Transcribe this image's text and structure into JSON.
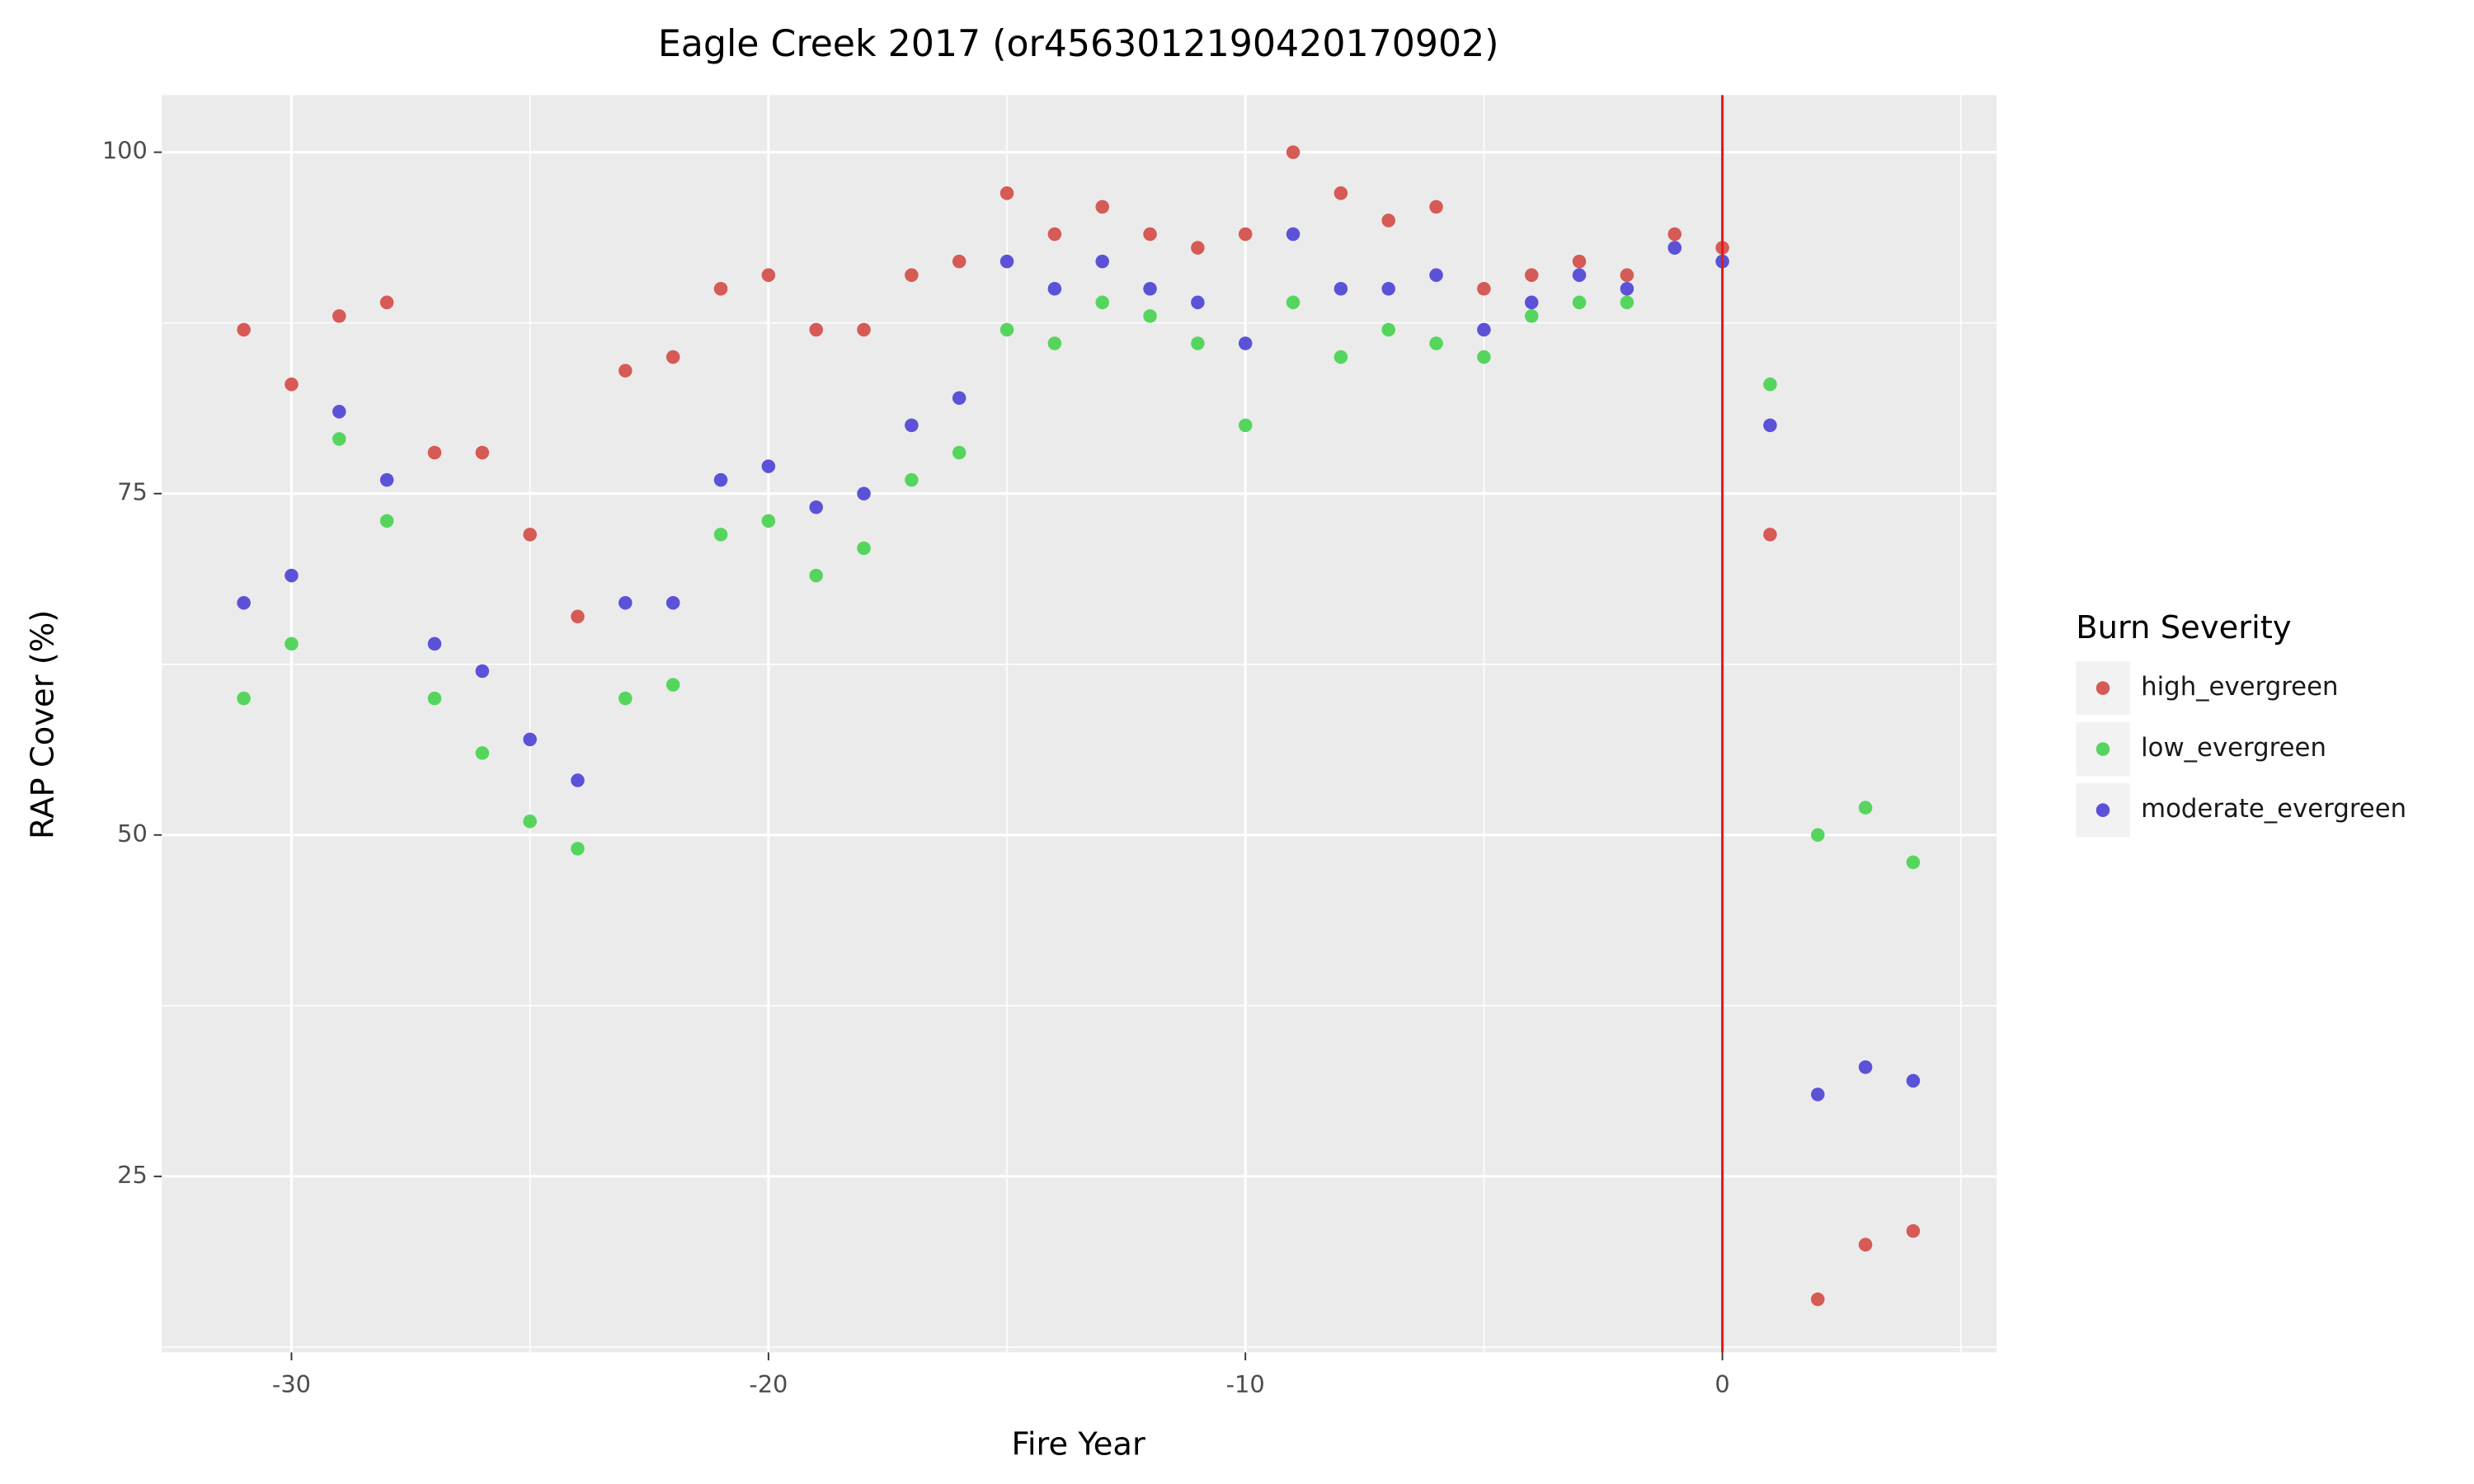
{
  "chart_data": {
    "type": "scatter",
    "title": "Eagle Creek 2017 (or4563012190420170902)",
    "x_label": "Fire Year",
    "y_label": "RAP Cover (%)",
    "legend_title": "Burn Severity",
    "legend_position": "right",
    "grid": true,
    "vline": {
      "x": 0,
      "color": "#e31a1c"
    },
    "x": [
      -31,
      -30,
      -29,
      -28,
      -27,
      -26,
      -25,
      -24,
      -23,
      -22,
      -21,
      -20,
      -19,
      -18,
      -17,
      -16,
      -15,
      -14,
      -13,
      -12,
      -11,
      -10,
      -9,
      -8,
      -7,
      -6,
      -5,
      -4,
      -3,
      -2,
      -1,
      0,
      1,
      2,
      3,
      4
    ],
    "series": [
      {
        "name": "high_evergreen",
        "color": "#d65a55",
        "values": [
          87,
          83,
          88,
          89,
          78,
          78,
          72,
          66,
          84,
          85,
          90,
          91,
          87,
          87,
          91,
          92,
          97,
          94,
          96,
          94,
          93,
          94,
          100,
          97,
          95,
          96,
          90,
          91,
          92,
          91,
          94,
          93,
          72,
          16,
          20,
          21
        ]
      },
      {
        "name": "low_evergreen",
        "color": "#56d55e",
        "values": [
          60,
          64,
          79,
          73,
          60,
          56,
          51,
          49,
          60,
          61,
          72,
          73,
          69,
          71,
          76,
          78,
          87,
          86,
          89,
          88,
          86,
          80,
          89,
          85,
          87,
          86,
          85,
          88,
          89,
          89,
          93,
          92,
          83,
          50,
          52,
          48
        ]
      },
      {
        "name": "moderate_evergreen",
        "color": "#5b52d8",
        "values": [
          67,
          69,
          81,
          76,
          64,
          62,
          57,
          54,
          67,
          67,
          76,
          77,
          74,
          75,
          80,
          82,
          92,
          90,
          92,
          90,
          89,
          86,
          94,
          90,
          90,
          91,
          87,
          89,
          91,
          90,
          93,
          92,
          80,
          31,
          33,
          32
        ]
      }
    ],
    "xlim": [
      -32.72,
      5.75
    ],
    "ylim": [
      12.11,
      104.18
    ],
    "xticks": [
      -30,
      -20,
      -10,
      0
    ],
    "yticks": [
      25,
      50,
      75,
      100
    ]
  }
}
